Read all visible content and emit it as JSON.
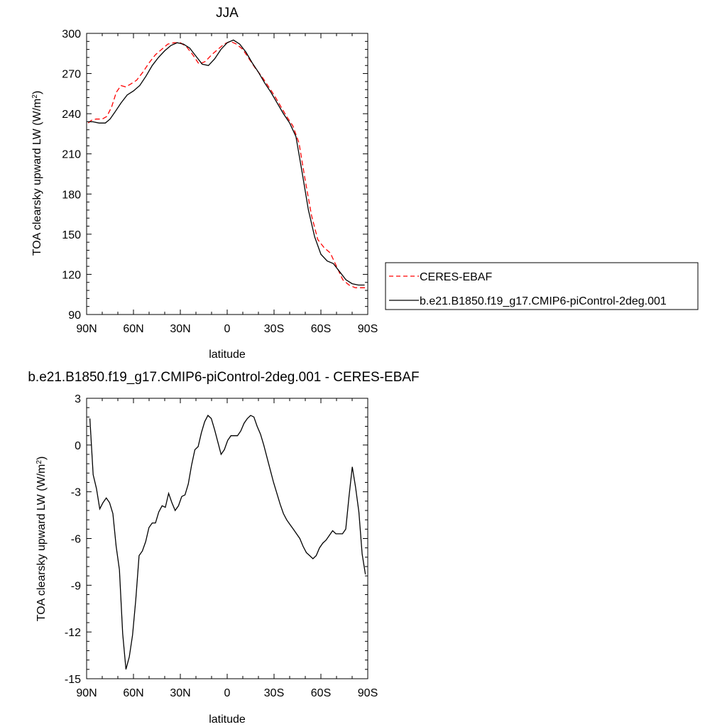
{
  "chart_data": [
    {
      "type": "line",
      "title": "JJA",
      "xlabel": "latitude",
      "ylabel": "TOA clearsky upward LW (W/m",
      "ylabel_sup": "2",
      "ylabel_end": ")",
      "xlim": [
        90,
        -90
      ],
      "ylim": [
        90,
        300
      ],
      "xticks": [
        90,
        60,
        30,
        0,
        -30,
        -60,
        -90
      ],
      "xtick_labels": [
        "90N",
        "60N",
        "30N",
        "0",
        "30S",
        "60S",
        "90S"
      ],
      "yticks": [
        90,
        120,
        150,
        180,
        210,
        240,
        270,
        300
      ],
      "ytick_labels": [
        "90",
        "120",
        "150",
        "180",
        "210",
        "240",
        "270",
        "300"
      ],
      "legend_position": "right",
      "series": [
        {
          "name": "CERES-EBAF",
          "color": "#ff0000",
          "dash": "dashed",
          "x": [
            89,
            87,
            84,
            80,
            77,
            74,
            71,
            68,
            65,
            62,
            58,
            54,
            50,
            46,
            42,
            38,
            34,
            30,
            26,
            22,
            18,
            14,
            10,
            6,
            2,
            -2,
            -6,
            -10,
            -14,
            -18,
            -22,
            -26,
            -30,
            -34,
            -38,
            -42,
            -46,
            -50,
            -54,
            -58,
            -62,
            -66,
            -70,
            -74,
            -78,
            -82,
            -86,
            -89
          ],
          "y": [
            233,
            235,
            236,
            236,
            238,
            245,
            256,
            261,
            260,
            262,
            265,
            271,
            278,
            284,
            288,
            292,
            293,
            293,
            290,
            284,
            277,
            279,
            284,
            288,
            292,
            294,
            292,
            288,
            281,
            274,
            268,
            261,
            254,
            246,
            238,
            231,
            218,
            190,
            164,
            146,
            140,
            136,
            126,
            116,
            112,
            110,
            110,
            110
          ]
        },
        {
          "name": "b.e21.B1850.f19_g17.CMIP6-piControl-2deg.001",
          "color": "#000000",
          "dash": "solid",
          "x": [
            89,
            86,
            82,
            78,
            75,
            72,
            68,
            64,
            60,
            56,
            52,
            48,
            44,
            40,
            36,
            32,
            28,
            24,
            20,
            16,
            12,
            8,
            4,
            0,
            -4,
            -8,
            -12,
            -16,
            -20,
            -24,
            -28,
            -32,
            -36,
            -40,
            -44,
            -48,
            -52,
            -56,
            -60,
            -64,
            -68,
            -72,
            -76,
            -80,
            -84,
            -88
          ],
          "y": [
            234,
            234,
            233,
            233,
            236,
            241,
            248,
            254,
            257,
            261,
            268,
            276,
            282,
            287,
            291,
            293,
            292,
            289,
            283,
            277,
            276,
            281,
            288,
            293,
            295,
            292,
            286,
            278,
            271,
            263,
            256,
            248,
            240,
            233,
            223,
            196,
            168,
            148,
            135,
            130,
            128,
            122,
            116,
            113,
            112,
            112
          ]
        }
      ]
    },
    {
      "type": "line",
      "title": "b.e21.B1850.f19_g17.CMIP6-piControl-2deg.001 - CERES-EBAF",
      "xlabel": "latitude",
      "ylabel": "TOA clearsky upward LW (W/m",
      "ylabel_sup": "2",
      "ylabel_end": ")",
      "xlim": [
        90,
        -90
      ],
      "ylim": [
        -15,
        3
      ],
      "xticks": [
        90,
        60,
        30,
        0,
        -30,
        -60,
        -90
      ],
      "xtick_labels": [
        "90N",
        "60N",
        "30N",
        "0",
        "30S",
        "60S",
        "90S"
      ],
      "yticks": [
        -15,
        -12,
        -9,
        -6,
        -3,
        0,
        3
      ],
      "ytick_labels": [
        "-15",
        "-12",
        "-9",
        "-6",
        "-3",
        "0",
        "3"
      ],
      "series": [
        {
          "name": "b.e21.B1850.f19_g17.CMIP6-piControl-2deg.001 - CERES-EBAF",
          "color": "#000000",
          "dash": "solid",
          "x": [
            87.9,
            85.8,
            83.7,
            81.6,
            79.5,
            77.4,
            75.3,
            73.2,
            71.1,
            69.0,
            66.9,
            64.8,
            62.7,
            60.6,
            58.5,
            56.4,
            54.3,
            52.2,
            50.1,
            48.0,
            45.9,
            43.8,
            41.7,
            39.6,
            37.5,
            35.4,
            33.3,
            31.2,
            29.1,
            27.0,
            24.9,
            22.8,
            20.7,
            18.6,
            16.5,
            14.4,
            12.3,
            10.2,
            8.1,
            6.0,
            3.9,
            1.8,
            -0.3,
            -2.4,
            -4.5,
            -6.6,
            -8.7,
            -10.8,
            -12.9,
            -15.0,
            -17.1,
            -19.2,
            -21.3,
            -23.4,
            -25.5,
            -27.6,
            -29.7,
            -31.8,
            -33.9,
            -36.0,
            -38.1,
            -40.2,
            -42.3,
            -44.4,
            -46.5,
            -48.6,
            -50.7,
            -52.8,
            -54.9,
            -57.0,
            -59.1,
            -61.2,
            -63.3,
            -65.4,
            -67.5,
            -69.6,
            -71.7,
            -73.8,
            -75.9,
            -78.0,
            -80.1,
            -82.2,
            -84.3,
            -86.4,
            -88.5
          ],
          "y": [
            1.7,
            -1.9,
            -2.8,
            -4.1,
            -3.7,
            -3.4,
            -3.7,
            -4.4,
            -6.5,
            -8.0,
            -12.1,
            -14.4,
            -13.6,
            -12.2,
            -9.9,
            -7.1,
            -6.8,
            -6.2,
            -5.3,
            -5.0,
            -5.0,
            -4.3,
            -3.9,
            -4.0,
            -3.1,
            -3.7,
            -4.2,
            -3.9,
            -3.3,
            -3.2,
            -2.5,
            -1.3,
            -0.3,
            -0.1,
            0.8,
            1.5,
            1.9,
            1.7,
            1.0,
            0.2,
            -0.6,
            -0.3,
            0.3,
            0.6,
            0.6,
            0.6,
            0.9,
            1.4,
            1.7,
            1.9,
            1.8,
            1.2,
            0.7,
            0.0,
            -0.8,
            -1.6,
            -2.4,
            -3.1,
            -3.8,
            -4.4,
            -4.8,
            -5.1,
            -5.4,
            -5.7,
            -6.0,
            -6.5,
            -6.9,
            -7.1,
            -7.3,
            -7.1,
            -6.6,
            -6.3,
            -6.1,
            -5.8,
            -5.5,
            -5.7,
            -5.7,
            -5.7,
            -5.4,
            -3.3,
            -1.4,
            -2.7,
            -4.3,
            -7.0,
            -8.3
          ]
        }
      ]
    }
  ]
}
